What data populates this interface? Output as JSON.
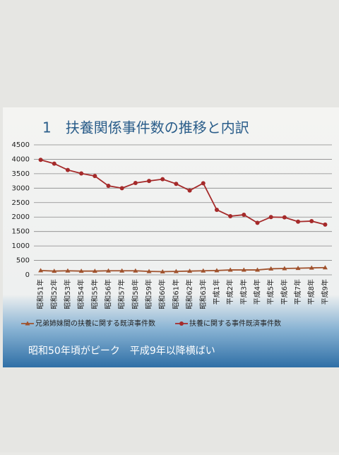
{
  "chart_data": {
    "type": "line",
    "title": "1　扶養関係事件数の推移と内訳",
    "caption": "昭和50年頃がピーク　平成9年以降横ばい",
    "categories": [
      "昭和51年",
      "昭和52年",
      "昭和53年",
      "昭和54年",
      "昭和55年",
      "昭和56年",
      "昭和57年",
      "昭和58年",
      "昭和59年",
      "昭和60年",
      "昭和61年",
      "昭和62年",
      "昭和63年",
      "平成1年",
      "平成2年",
      "平成3年",
      "平成4年",
      "平成5年",
      "平成6年",
      "平成7年",
      "平成8年",
      "平成9年"
    ],
    "series": [
      {
        "name": "兄弟姉妹間の扶養に関する既済事件数",
        "color": "#a0522d",
        "marker": "triangle",
        "values": [
          150,
          130,
          140,
          130,
          130,
          140,
          140,
          140,
          120,
          110,
          120,
          130,
          140,
          150,
          170,
          170,
          170,
          210,
          220,
          230,
          240,
          250
        ]
      },
      {
        "name": "扶養に関する事件既済事件数",
        "color": "#a52a2a",
        "marker": "circle",
        "values": [
          3980,
          3850,
          3630,
          3510,
          3420,
          3080,
          3000,
          3180,
          3250,
          3310,
          3150,
          2920,
          3170,
          2250,
          2030,
          2080,
          1800,
          2000,
          1990,
          1840,
          1860,
          1740
        ]
      }
    ],
    "ylim": [
      0,
      4500
    ],
    "yticks": [
      0,
      500,
      1000,
      1500,
      2000,
      2500,
      3000,
      3500,
      4000,
      4500
    ],
    "grid": true
  }
}
